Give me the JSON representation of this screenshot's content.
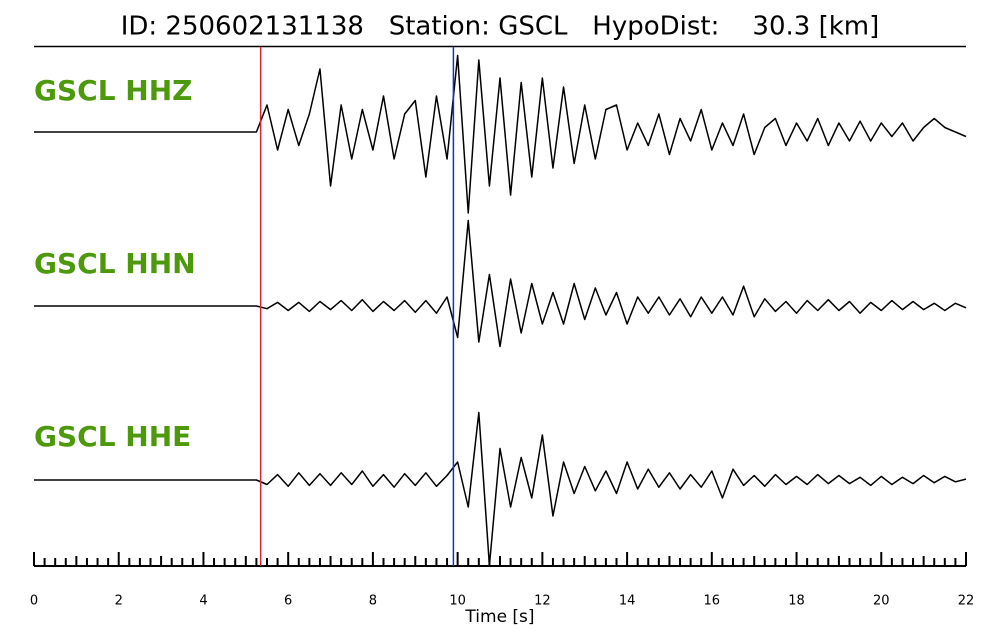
{
  "chart_data": {
    "type": "seismogram",
    "title": "ID: 250602131138   Station: GSCL   HypoDist:    30.3 [km]",
    "x_label": "Time [s]",
    "xlim": [
      0,
      22
    ],
    "xticks": [
      0,
      2,
      4,
      6,
      8,
      10,
      12,
      14,
      16,
      18,
      20,
      22
    ],
    "picks": [
      {
        "value": 5.35,
        "color": "#e8202a"
      },
      {
        "value": 9.9,
        "color": "#1a2fc9"
      }
    ],
    "x": [
      0,
      0.25,
      0.5,
      0.75,
      1,
      1.25,
      1.5,
      1.75,
      2,
      2.25,
      2.5,
      2.75,
      3,
      3.25,
      3.5,
      3.75,
      4,
      4.25,
      4.5,
      4.75,
      5,
      5.25,
      5.5,
      5.75,
      6,
      6.25,
      6.5,
      6.75,
      7,
      7.25,
      7.5,
      7.75,
      8,
      8.25,
      8.5,
      8.75,
      9,
      9.25,
      9.5,
      9.75,
      10,
      10.25,
      10.5,
      10.75,
      11,
      11.25,
      11.5,
      11.75,
      12,
      12.25,
      12.5,
      12.75,
      13,
      13.25,
      13.5,
      13.75,
      14,
      14.25,
      14.5,
      14.75,
      15,
      15.25,
      15.5,
      15.75,
      16,
      16.25,
      16.5,
      16.75,
      17,
      17.25,
      17.5,
      17.75,
      18,
      18.25,
      18.5,
      18.75,
      19,
      19.25,
      19.5,
      19.75,
      20,
      20.25,
      20.5,
      20.75,
      21,
      21.25,
      21.5,
      21.75,
      22
    ],
    "series": [
      {
        "name": "GSCL HHZ",
        "color": "#000000",
        "label_color": "#4c9a0c",
        "values": [
          0,
          0,
          0,
          0,
          0,
          0,
          0,
          0,
          0,
          0,
          0,
          0,
          0,
          0,
          0,
          0,
          0,
          0,
          0,
          0,
          0,
          0,
          0.3,
          -0.2,
          0.25,
          -0.15,
          0.2,
          0.7,
          -0.6,
          0.3,
          -0.3,
          0.25,
          -0.2,
          0.4,
          -0.3,
          0.2,
          0.35,
          -0.5,
          0.4,
          -0.3,
          0.85,
          -0.9,
          0.8,
          -0.6,
          0.6,
          -0.7,
          0.55,
          -0.5,
          0.6,
          -0.4,
          0.5,
          -0.35,
          0.3,
          -0.3,
          0.25,
          0.3,
          -0.2,
          0.1,
          -0.15,
          0.2,
          -0.25,
          0.15,
          -0.1,
          0.25,
          -0.2,
          0.1,
          -0.15,
          0.2,
          -0.25,
          0.05,
          0.15,
          -0.15,
          0.1,
          -0.1,
          0.15,
          -0.15,
          0.1,
          -0.1,
          0.12,
          -0.1,
          0.1,
          -0.05,
          0.1,
          -0.1,
          0.05,
          0.15,
          0.05,
          0,
          -0.05
        ]
      },
      {
        "name": "GSCL HHN",
        "color": "#000000",
        "label_color": "#4c9a0c",
        "values": [
          0,
          0,
          0,
          0,
          0,
          0,
          0,
          0,
          0,
          0,
          0,
          0,
          0,
          0,
          0,
          0,
          0,
          0,
          0,
          0,
          0,
          0,
          -0.03,
          0.04,
          -0.05,
          0.04,
          -0.06,
          0.05,
          -0.04,
          0.06,
          -0.05,
          0.07,
          -0.06,
          0.05,
          -0.05,
          0.06,
          -0.07,
          0.06,
          -0.08,
          0.1,
          -0.35,
          0.95,
          -0.4,
          0.35,
          -0.45,
          0.3,
          -0.3,
          0.25,
          -0.2,
          0.15,
          -0.2,
          0.25,
          -0.15,
          0.2,
          -0.1,
          0.15,
          -0.2,
          0.1,
          -0.08,
          0.1,
          -0.1,
          0.08,
          -0.12,
          0.1,
          -0.08,
          0.1,
          -0.1,
          0.22,
          -0.12,
          0.08,
          -0.06,
          0.05,
          -0.08,
          0.06,
          -0.05,
          0.07,
          -0.05,
          0.05,
          -0.08,
          0.04,
          -0.05,
          0.06,
          -0.04,
          0.05,
          -0.04,
          0.03,
          -0.05,
          0.03,
          -0.02
        ]
      },
      {
        "name": "GSCL HHE",
        "color": "#000000",
        "label_color": "#4c9a0c",
        "values": [
          0,
          0,
          0,
          0,
          0,
          0,
          0,
          0,
          0,
          0,
          0,
          0,
          0,
          0,
          0,
          0,
          0,
          0,
          0,
          0,
          0,
          0,
          -0.05,
          0.06,
          -0.07,
          0.08,
          -0.06,
          0.07,
          -0.06,
          0.08,
          -0.05,
          0.1,
          -0.07,
          0.06,
          -0.08,
          0.07,
          -0.06,
          0.08,
          -0.07,
          0.05,
          0.2,
          -0.3,
          0.75,
          -0.95,
          0.35,
          -0.3,
          0.25,
          -0.2,
          0.5,
          -0.4,
          0.2,
          -0.15,
          0.15,
          -0.12,
          0.1,
          -0.15,
          0.2,
          -0.1,
          0.12,
          -0.08,
          0.08,
          -0.1,
          0.06,
          -0.08,
          0.1,
          -0.2,
          0.12,
          -0.06,
          0.05,
          -0.07,
          0.06,
          -0.05,
          0.04,
          -0.05,
          0.06,
          -0.04,
          0.05,
          -0.04,
          0.03,
          -0.06,
          0.04,
          -0.05,
          0.03,
          -0.04,
          0.05,
          -0.03,
          0.04,
          -0.02,
          0.01
        ]
      }
    ]
  }
}
